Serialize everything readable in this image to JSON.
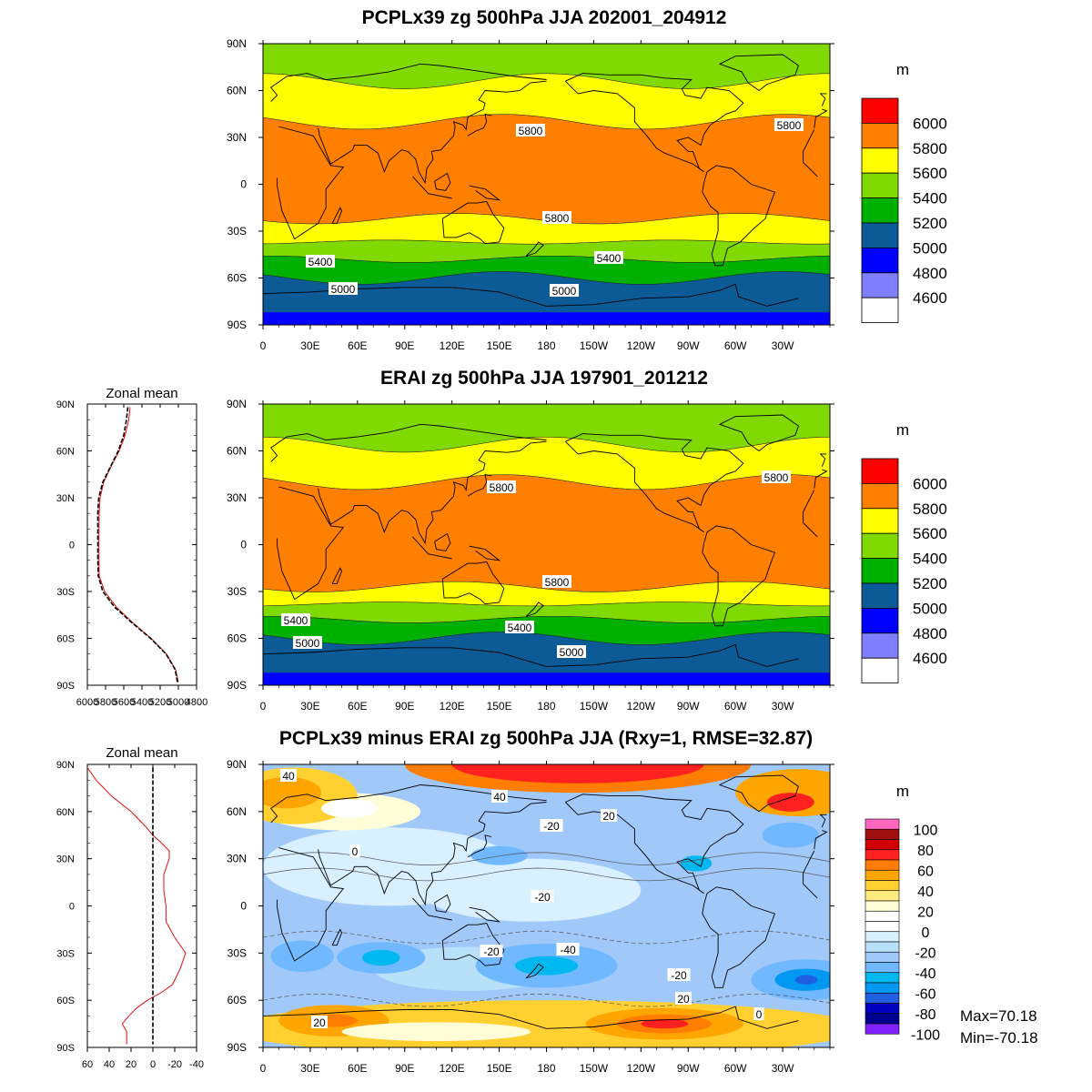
{
  "panels": {
    "model": {
      "title": "PCPLx39 zg 500hPa JJA 202001_204912",
      "units": "m",
      "legend_labels": [
        "6000",
        "5800",
        "5600",
        "5400",
        "5200",
        "5000",
        "4800",
        "4600"
      ],
      "legend_colors": [
        "#ff0000",
        "#ff7f00",
        "#ffff00",
        "#80d900",
        "#00b000",
        "#0c5a96",
        "#0000ff",
        "#8080ff",
        "#ffffff"
      ],
      "contour_labels": [
        "5800",
        "5800",
        "5800",
        "5400",
        "5400",
        "5000",
        "5000"
      ],
      "band_edges_lat": [
        66,
        40,
        -22,
        -37,
        -48,
        -60
      ],
      "band_fill": [
        "#80d900",
        "#ffff00",
        "#ff7f00",
        "#ffff00",
        "#80d900",
        "#00b000",
        "#0c5a96",
        "#0000ff"
      ]
    },
    "obs": {
      "title": "ERAI zg 500hPa JJA 197901_201212",
      "units": "m",
      "legend_labels": [
        "6000",
        "5800",
        "5600",
        "5400",
        "5200",
        "5000",
        "4800",
        "4600"
      ],
      "legend_colors": [
        "#ff0000",
        "#ff7f00",
        "#ffff00",
        "#80d900",
        "#00b000",
        "#0c5a96",
        "#0000ff",
        "#8080ff",
        "#ffffff"
      ],
      "contour_labels": [
        "5800",
        "5800",
        "5800",
        "5400",
        "5400",
        "5000",
        "5000"
      ],
      "band_edges_lat": [
        64,
        40,
        -27,
        -38,
        -48,
        -60
      ],
      "band_fill": [
        "#80d900",
        "#ffff00",
        "#ff7f00",
        "#ffff00",
        "#80d900",
        "#00b000",
        "#0c5a96",
        "#0000ff"
      ]
    },
    "diff": {
      "title": "PCPLx39 minus ERAI zg 500hPa JJA (Rxy=1, RMSE=32.87)",
      "units": "m",
      "legend_labels": [
        "100",
        "80",
        "60",
        "40",
        "20",
        "0",
        "-20",
        "-40",
        "-60",
        "-80",
        "-100"
      ],
      "legend_colors": [
        "#ff66c0",
        "#a01010",
        "#d00000",
        "#ff2020",
        "#ff7d00",
        "#ffa500",
        "#ffd030",
        "#ffeb80",
        "#fffcd8",
        "#ffffff",
        "#ffffff",
        "#d8f0ff",
        "#b8e0f8",
        "#a0c8f8",
        "#70b8ff",
        "#00b8f0",
        "#0098f0",
        "#2060e0",
        "#0000c0",
        "#000090",
        "#8020ff"
      ],
      "contour_labels": [
        "40",
        "40",
        "-20",
        "20",
        "0",
        "-20",
        "-20",
        "-40",
        "-20",
        "20",
        "0",
        "20"
      ],
      "max_label": "Max=70.18",
      "min_label": "Min=-70.18"
    }
  },
  "map_axes": {
    "lon_labels": [
      "0",
      "30E",
      "60E",
      "90E",
      "120E",
      "150E",
      "180",
      "150W",
      "120W",
      "90W",
      "60W",
      "30W"
    ],
    "lat_labels": [
      "90N",
      "60N",
      "30N",
      "0",
      "30S",
      "60S",
      "90S"
    ]
  },
  "zonal_mean_top": {
    "title": "Zonal mean",
    "x_tick_labels": [
      "6000",
      "5800",
      "5600",
      "5400",
      "5200",
      "5000",
      "4800"
    ],
    "y_tick_labels": [
      "90N",
      "60N",
      "30N",
      "0",
      "30S",
      "60S",
      "90S"
    ]
  },
  "zonal_mean_bottom": {
    "title": "Zonal mean",
    "x_tick_labels": [
      "60",
      "40",
      "20",
      "0",
      "-20",
      "-40"
    ],
    "y_tick_labels": [
      "90N",
      "60N",
      "30N",
      "0",
      "30S",
      "60S",
      "90S"
    ]
  },
  "chart_data": [
    {
      "type": "heatmap",
      "title": "PCPLx39 zg 500hPa JJA 202001_204912",
      "units": "m",
      "xlim": [
        0,
        360
      ],
      "ylim": [
        -90,
        90
      ],
      "levels": [
        4600,
        4800,
        5000,
        5200,
        5400,
        5600,
        5800,
        6000
      ]
    },
    {
      "type": "heatmap",
      "title": "ERAI zg 500hPa JJA 197901_201212",
      "units": "m",
      "xlim": [
        0,
        360
      ],
      "ylim": [
        -90,
        90
      ],
      "levels": [
        4600,
        4800,
        5000,
        5200,
        5400,
        5600,
        5800,
        6000
      ]
    },
    {
      "type": "heatmap",
      "title": "PCPLx39 minus ERAI zg 500hPa JJA (Rxy=1, RMSE=32.87)",
      "units": "m",
      "xlim": [
        0,
        360
      ],
      "ylim": [
        -90,
        90
      ],
      "levels": [
        -100,
        -80,
        -60,
        -40,
        -20,
        0,
        20,
        40,
        60,
        80,
        100
      ],
      "max": 70.18,
      "min": -70.18
    },
    {
      "type": "line",
      "title": "Zonal mean",
      "xlim": [
        6000,
        4800
      ],
      "ylim": [
        -90,
        90
      ],
      "y": [
        88,
        80,
        70,
        60,
        50,
        40,
        30,
        20,
        10,
        0,
        -10,
        -20,
        -30,
        -40,
        -50,
        -60,
        -70,
        -80,
        -88
      ],
      "series": [
        {
          "values": [
            5530,
            5545,
            5585,
            5650,
            5740,
            5820,
            5860,
            5870,
            5872,
            5873,
            5872,
            5870,
            5810,
            5680,
            5500,
            5300,
            5130,
            5030,
            5000
          ]
        },
        {
          "values": [
            5555,
            5570,
            5600,
            5660,
            5745,
            5830,
            5875,
            5885,
            5885,
            5885,
            5885,
            5880,
            5830,
            5700,
            5510,
            5305,
            5135,
            5035,
            5010
          ]
        }
      ]
    },
    {
      "type": "line",
      "title": "Zonal mean",
      "xlim": [
        60,
        -40
      ],
      "ylim": [
        -90,
        90
      ],
      "y": [
        88,
        80,
        70,
        60,
        50,
        45,
        40,
        35,
        30,
        20,
        10,
        0,
        -10,
        -20,
        -30,
        -40,
        -50,
        -55,
        -60,
        -65,
        -70,
        -75,
        -80,
        -88
      ],
      "series": [
        {
          "values": [
            60,
            52,
            38,
            20,
            6,
            0,
            -8,
            -15,
            -15,
            -10,
            -10,
            -12,
            -12,
            -20,
            -30,
            -25,
            -18,
            -8,
            5,
            15,
            22,
            28,
            24,
            24
          ]
        },
        {
          "values": [
            0,
            0,
            0,
            0,
            0,
            0,
            0,
            0,
            0,
            0,
            0,
            0,
            0,
            0,
            0,
            0,
            0,
            0,
            0,
            0,
            0,
            0,
            0,
            0
          ]
        }
      ]
    }
  ]
}
